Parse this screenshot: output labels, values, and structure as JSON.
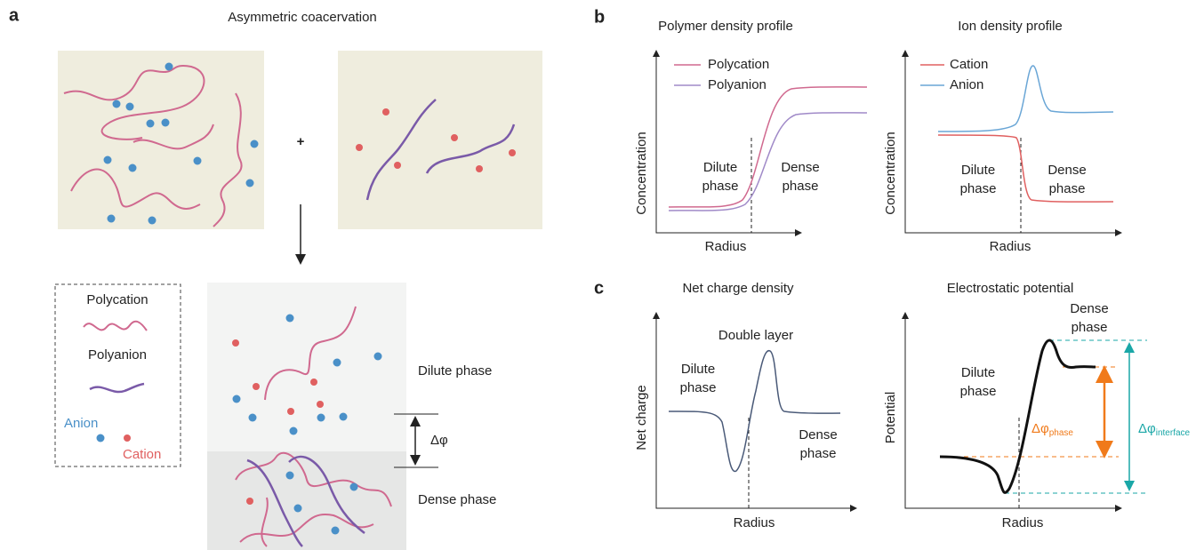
{
  "panel_a": {
    "label": "a",
    "title": "Asymmetric coacervation",
    "plus": "+",
    "legend": {
      "polycation": "Polycation",
      "polyanion": "Polyanion",
      "anion": "Anion",
      "cation": "Cation"
    },
    "dilute": "Dilute phase",
    "dense": "Dense phase",
    "delta": "Δφ"
  },
  "panel_b": {
    "label": "b",
    "plots": [
      {
        "title": "Polymer density profile",
        "legend": [
          "Polycation",
          "Polyanion"
        ],
        "ylabel": "Concentration",
        "xlabel": "Radius",
        "dilute": [
          "Dilute",
          "phase"
        ],
        "dense": [
          "Dense",
          "phase"
        ]
      },
      {
        "title": "Ion density profile",
        "legend": [
          "Cation",
          "Anion"
        ],
        "ylabel": "Concentration",
        "xlabel": "Radius",
        "dilute": [
          "Dilute",
          "phase"
        ],
        "dense": [
          "Dense",
          "phase"
        ]
      }
    ]
  },
  "panel_c": {
    "label": "c",
    "plots": [
      {
        "title": "Net charge density",
        "note": "Double layer",
        "ylabel": "Net charge",
        "xlabel": "Radius",
        "dilute": [
          "Dilute",
          "phase"
        ],
        "dense": [
          "Dense",
          "phase"
        ]
      },
      {
        "title": "Electrostatic potential",
        "ylabel": "Potential",
        "xlabel": "Radius",
        "dilute": [
          "Dilute",
          "phase"
        ],
        "dense": [
          "Dense",
          "phase"
        ],
        "delta_phase": {
          "symbol": "Δφ",
          "sub": "phase"
        },
        "delta_interface": {
          "symbol": "Δφ",
          "sub": "interface"
        }
      }
    ]
  }
}
